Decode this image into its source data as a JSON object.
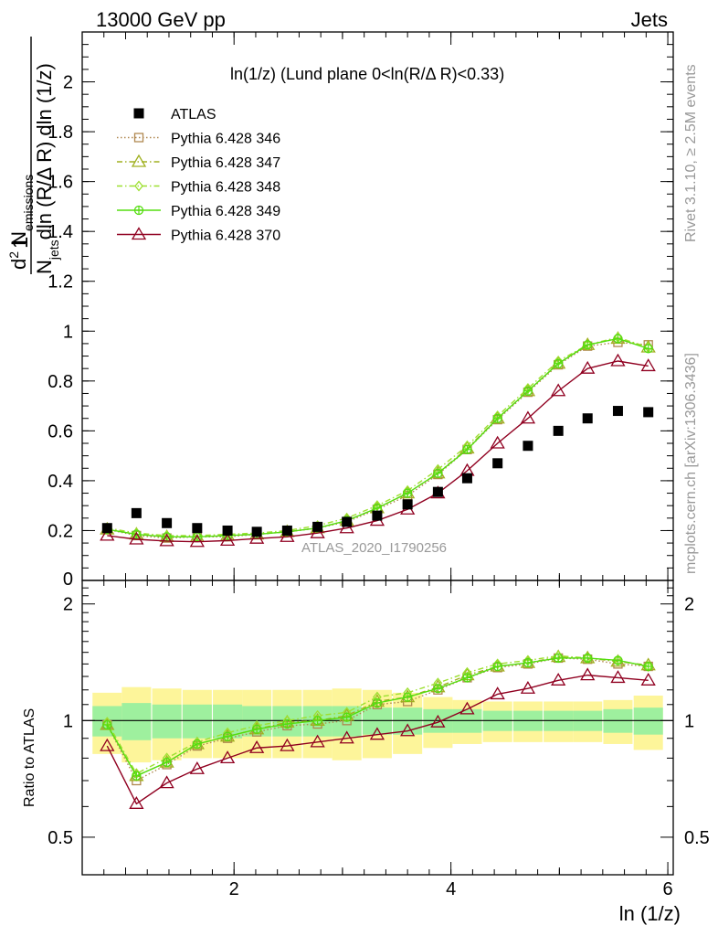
{
  "header": {
    "left": "13000 GeV pp",
    "right": "Jets"
  },
  "side_labels": {
    "rivet": "Rivet 3.1.10, ≥ 2.5M events",
    "mcplots": "mcplots.cern.ch [arXiv:1306.3436]"
  },
  "watermark": "ATLAS_2020_I1790256",
  "chart_data": [
    {
      "type": "scatter",
      "title": "ln(1/z) (Lund plane 0<ln(R/Δ R)<0.33)",
      "ylabel": "1/N_jets d²N_emissions / dln(R/ΔR) dln(1/z)",
      "xlabel": "ln (1/z)",
      "xlim": [
        0.6,
        6.05
      ],
      "ylim": [
        0,
        2.2
      ],
      "x_ticks": [
        2,
        4,
        6
      ],
      "y_ticks": [
        "0.2",
        "0.4",
        "0.6",
        "0.8",
        "1",
        "1.2",
        "1.4",
        "1.6",
        "1.8",
        "2"
      ],
      "y_tick_partial": "0",
      "x": [
        0.83,
        1.1,
        1.38,
        1.66,
        1.94,
        2.21,
        2.49,
        2.77,
        3.04,
        3.32,
        3.6,
        3.88,
        4.15,
        4.43,
        4.71,
        4.99,
        5.26,
        5.54,
        5.82
      ],
      "legend": [
        {
          "name": "ATLAS",
          "marker": "square-filled",
          "color": "#000000",
          "style": "none"
        },
        {
          "name": "Pythia 6.428 346",
          "marker": "square-open",
          "color": "#b08850",
          "style": "dotted"
        },
        {
          "name": "Pythia 6.428 347",
          "marker": "triangle-open",
          "color": "#a0b020",
          "style": "dashdot"
        },
        {
          "name": "Pythia 6.428 348",
          "marker": "diamond-open",
          "color": "#9de030",
          "style": "dashdot"
        },
        {
          "name": "Pythia 6.428 349",
          "marker": "circle-plus",
          "color": "#55dd10",
          "style": "solid"
        },
        {
          "name": "Pythia 6.428 370",
          "marker": "triangle-open",
          "color": "#900020",
          "style": "solid"
        }
      ],
      "series": [
        {
          "name": "ATLAS",
          "values": [
            0.21,
            0.27,
            0.23,
            0.21,
            0.2,
            0.195,
            0.2,
            0.215,
            0.235,
            0.26,
            0.305,
            0.355,
            0.41,
            0.47,
            0.54,
            0.6,
            0.65,
            0.68,
            0.675
          ]
        },
        {
          "name": "Pythia 6.428 346",
          "values": [
            0.205,
            0.18,
            0.17,
            0.175,
            0.175,
            0.185,
            0.195,
            0.21,
            0.235,
            0.285,
            0.34,
            0.425,
            0.525,
            0.645,
            0.755,
            0.865,
            0.94,
            0.955,
            0.945
          ]
        },
        {
          "name": "Pythia 6.428 347",
          "values": [
            0.205,
            0.185,
            0.175,
            0.175,
            0.18,
            0.185,
            0.195,
            0.21,
            0.24,
            0.29,
            0.35,
            0.43,
            0.53,
            0.65,
            0.76,
            0.87,
            0.945,
            0.97,
            0.935
          ]
        },
        {
          "name": "Pythia 6.428 348",
          "values": [
            0.21,
            0.19,
            0.18,
            0.18,
            0.185,
            0.19,
            0.2,
            0.22,
            0.25,
            0.3,
            0.36,
            0.445,
            0.54,
            0.66,
            0.77,
            0.88,
            0.945,
            0.975,
            0.935
          ]
        },
        {
          "name": "Pythia 6.428 349",
          "values": [
            0.205,
            0.185,
            0.175,
            0.175,
            0.18,
            0.185,
            0.195,
            0.21,
            0.24,
            0.29,
            0.35,
            0.43,
            0.525,
            0.65,
            0.76,
            0.87,
            0.945,
            0.97,
            0.93
          ]
        },
        {
          "name": "Pythia 6.428 370",
          "values": [
            0.18,
            0.165,
            0.158,
            0.155,
            0.16,
            0.168,
            0.175,
            0.19,
            0.21,
            0.24,
            0.285,
            0.35,
            0.44,
            0.55,
            0.65,
            0.76,
            0.85,
            0.88,
            0.86
          ]
        }
      ]
    },
    {
      "type": "scatter",
      "ylabel": "Ratio to ATLAS",
      "xlim": [
        0.6,
        6.05
      ],
      "ylim": [
        0.4,
        2.3
      ],
      "y_log": true,
      "y_ticks": [
        "0.5",
        "1",
        "2"
      ],
      "bands": {
        "green_half_width": [
          0.09,
          0.11,
          0.1,
          0.1,
          0.1,
          0.09,
          0.09,
          0.09,
          0.09,
          0.08,
          0.08,
          0.07,
          0.07,
          0.06,
          0.06,
          0.06,
          0.06,
          0.07,
          0.08
        ],
        "yellow_half_width": [
          0.18,
          0.22,
          0.21,
          0.2,
          0.2,
          0.2,
          0.2,
          0.2,
          0.21,
          0.2,
          0.18,
          0.15,
          0.13,
          0.12,
          0.12,
          0.12,
          0.12,
          0.13,
          0.16
        ]
      },
      "series": [
        {
          "name": "Pythia 6.428 346",
          "values": [
            0.975,
            0.7,
            0.77,
            0.86,
            0.9,
            0.935,
            0.97,
            0.98,
            1.0,
            1.1,
            1.12,
            1.2,
            1.29,
            1.37,
            1.4,
            1.45,
            1.44,
            1.4,
            1.38
          ]
        },
        {
          "name": "Pythia 6.428 347",
          "values": [
            0.975,
            0.72,
            0.78,
            0.87,
            0.91,
            0.95,
            0.99,
            1.0,
            1.03,
            1.12,
            1.15,
            1.22,
            1.31,
            1.38,
            1.41,
            1.46,
            1.45,
            1.42,
            1.39
          ]
        },
        {
          "name": "Pythia 6.428 348",
          "values": [
            0.99,
            0.73,
            0.8,
            0.88,
            0.93,
            0.97,
            1.0,
            1.03,
            1.05,
            1.15,
            1.18,
            1.25,
            1.33,
            1.4,
            1.43,
            1.47,
            1.45,
            1.43,
            1.38
          ]
        },
        {
          "name": "Pythia 6.428 349",
          "values": [
            0.975,
            0.72,
            0.78,
            0.87,
            0.91,
            0.95,
            0.98,
            1.0,
            1.02,
            1.11,
            1.15,
            1.21,
            1.29,
            1.38,
            1.41,
            1.45,
            1.45,
            1.43,
            1.38
          ]
        },
        {
          "name": "Pythia 6.428 370",
          "values": [
            0.86,
            0.61,
            0.69,
            0.75,
            0.8,
            0.85,
            0.86,
            0.88,
            0.9,
            0.92,
            0.94,
            0.99,
            1.07,
            1.17,
            1.21,
            1.27,
            1.31,
            1.29,
            1.27
          ]
        }
      ]
    }
  ]
}
